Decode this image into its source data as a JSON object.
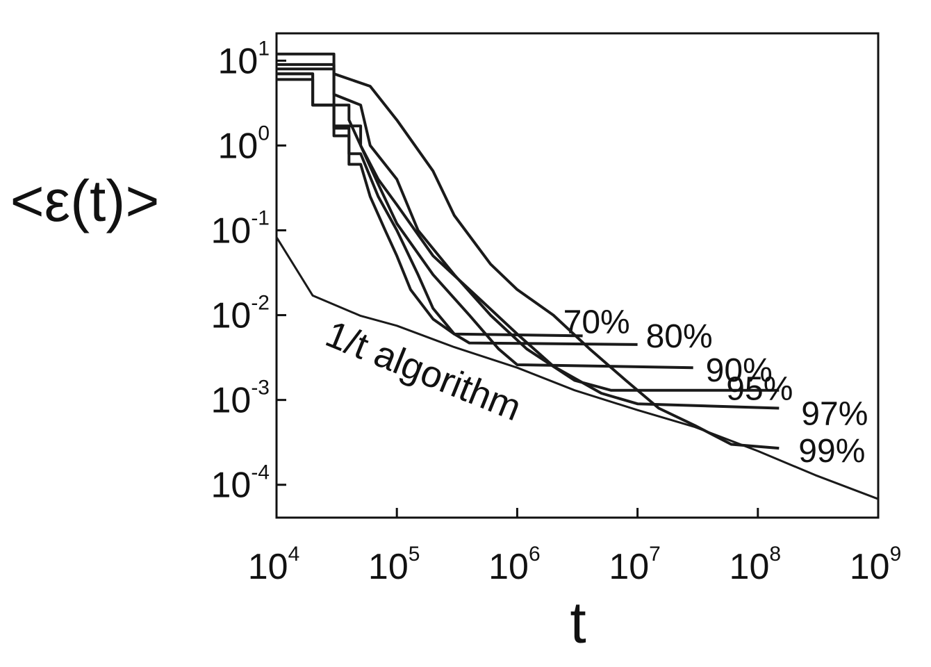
{
  "chart_data": {
    "type": "line",
    "xlabel": "t",
    "ylabel": "<ε(t)>",
    "log_x": true,
    "log_y": true,
    "color": "#1a1a1a",
    "xlim": [
      10000,
      1000000000
    ],
    "ylim": [
      4.1e-05,
      21
    ],
    "xticks": [
      {
        "value": 10000,
        "label": "10",
        "sup": "4"
      },
      {
        "value": 100000,
        "label": "10",
        "sup": "5"
      },
      {
        "value": 1000000,
        "label": "10",
        "sup": "6"
      },
      {
        "value": 10000000,
        "label": "10",
        "sup": "7"
      },
      {
        "value": 100000000,
        "label": "10",
        "sup": "8"
      },
      {
        "value": 1000000000,
        "label": "10",
        "sup": "9"
      }
    ],
    "yticks": [
      {
        "value": 10,
        "label": "10",
        "sup": "1"
      },
      {
        "value": 1,
        "label": "10",
        "sup": "0"
      },
      {
        "value": 0.1,
        "label": "10",
        "sup": "-1"
      },
      {
        "value": 0.01,
        "label": "10",
        "sup": "-2"
      },
      {
        "value": 0.001,
        "label": "10",
        "sup": "-3"
      },
      {
        "value": 0.0001,
        "label": "10",
        "sup": "-4"
      }
    ],
    "series": [
      {
        "name": "70%",
        "x": [
          10000,
          20000,
          20000,
          30000,
          30000,
          40000,
          40000,
          50000,
          60000,
          80000,
          100000,
          130000,
          200000,
          300000,
          3500000
        ],
        "values": [
          6,
          6,
          3,
          3,
          1.3,
          1.3,
          0.6,
          0.6,
          0.25,
          0.1,
          0.05,
          0.02,
          0.009,
          0.006,
          0.0057
        ]
      },
      {
        "name": "80%",
        "x": [
          10000,
          20000,
          20000,
          30000,
          30000,
          40000,
          40000,
          50000,
          70000,
          100000,
          150000,
          200000,
          300000,
          400000,
          10000000
        ],
        "values": [
          7,
          7,
          3,
          3,
          1.6,
          1.6,
          0.8,
          0.8,
          0.25,
          0.1,
          0.03,
          0.012,
          0.006,
          0.0047,
          0.0045
        ]
      },
      {
        "name": "90%",
        "x": [
          10000,
          30000,
          30000,
          40000,
          40000,
          50000,
          70000,
          100000,
          200000,
          400000,
          700000,
          1000000,
          29000000
        ],
        "values": [
          8,
          8,
          3,
          3,
          2,
          1,
          0.35,
          0.12,
          0.03,
          0.01,
          0.004,
          0.0026,
          0.0024
        ]
      },
      {
        "name": "95%",
        "x": [
          10000,
          30000,
          30000,
          50000,
          60000,
          100000,
          150000,
          300000,
          600000,
          1200000,
          3000000,
          6000000,
          150000000
        ],
        "values": [
          9,
          9,
          4,
          3,
          1,
          0.4,
          0.1,
          0.03,
          0.01,
          0.004,
          0.0017,
          0.0013,
          0.0013
        ]
      },
      {
        "name": "97%",
        "x": [
          10000,
          20000,
          20000,
          30000,
          30000,
          50000,
          50000,
          70000,
          100000,
          200000,
          500000,
          1000000,
          2000000,
          5000000,
          10000000,
          150000000
        ],
        "values": [
          7,
          7,
          3,
          3,
          1.7,
          1.7,
          1,
          0.4,
          0.2,
          0.05,
          0.015,
          0.006,
          0.0025,
          0.0012,
          0.0009,
          0.0008
        ]
      },
      {
        "name": "99%",
        "x": [
          10000,
          30000,
          30000,
          60000,
          100000,
          200000,
          300000,
          600000,
          1000000,
          2000000,
          4000000,
          8000000,
          15000000,
          30000000,
          60000000,
          150000000
        ],
        "values": [
          12,
          12,
          7,
          5,
          2,
          0.5,
          0.15,
          0.04,
          0.02,
          0.01,
          0.004,
          0.0017,
          0.0008,
          0.0005,
          0.0003,
          0.00027
        ]
      },
      {
        "name": "1/t algorithm",
        "x": [
          10000,
          20000,
          50000,
          100000,
          300000,
          1000000,
          3000000,
          10000000,
          30000000,
          100000000,
          300000000,
          1000000000
        ],
        "values": [
          0.083,
          0.017,
          0.0098,
          0.0075,
          0.0042,
          0.0024,
          0.0013,
          0.00076,
          0.00048,
          0.00025,
          0.00013,
          6.8e-05
        ]
      }
    ]
  }
}
